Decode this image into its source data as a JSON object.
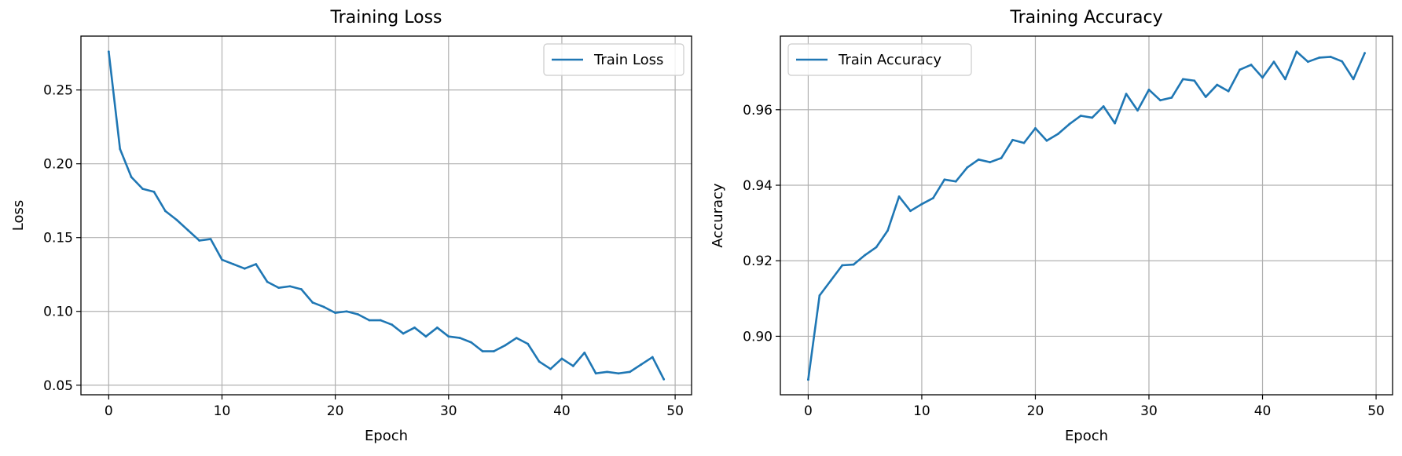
{
  "chart_data": [
    {
      "type": "line",
      "title": "Training Loss",
      "xlabel": "Epoch",
      "ylabel": "Loss",
      "xlim": [
        -2.45,
        51.45
      ],
      "ylim": [
        0.0435,
        0.2865
      ],
      "xticks": [
        0,
        10,
        20,
        30,
        40,
        50
      ],
      "yticks": [
        0.05,
        0.1,
        0.15,
        0.2,
        0.25
      ],
      "xtick_labels": [
        "0",
        "10",
        "20",
        "30",
        "40",
        "50"
      ],
      "ytick_labels": [
        "0.05",
        "0.10",
        "0.15",
        "0.20",
        "0.25"
      ],
      "grid": true,
      "legend_position": "top-right",
      "series": [
        {
          "name": "Train Loss",
          "color": "#1f77b4",
          "x": [
            0,
            1,
            2,
            3,
            4,
            5,
            6,
            7,
            8,
            9,
            10,
            11,
            12,
            13,
            14,
            15,
            16,
            17,
            18,
            19,
            20,
            21,
            22,
            23,
            24,
            25,
            26,
            27,
            28,
            29,
            30,
            31,
            32,
            33,
            34,
            35,
            36,
            37,
            38,
            39,
            40,
            41,
            42,
            43,
            44,
            45,
            46,
            47,
            48,
            49
          ],
          "values": [
            0.276,
            0.21,
            0.191,
            0.183,
            0.181,
            0.168,
            0.162,
            0.155,
            0.148,
            0.149,
            0.135,
            0.132,
            0.129,
            0.132,
            0.12,
            0.116,
            0.117,
            0.115,
            0.106,
            0.103,
            0.099,
            0.1,
            0.098,
            0.094,
            0.094,
            0.091,
            0.085,
            0.089,
            0.083,
            0.089,
            0.083,
            0.082,
            0.079,
            0.073,
            0.073,
            0.077,
            0.082,
            0.078,
            0.066,
            0.061,
            0.068,
            0.063,
            0.072,
            0.058,
            0.059,
            0.058,
            0.059,
            0.064,
            0.069,
            0.054
          ]
        }
      ]
    },
    {
      "type": "line",
      "title": "Training Accuracy",
      "xlabel": "Epoch",
      "ylabel": "Accuracy",
      "xlim": [
        -2.45,
        51.45
      ],
      "ylim": [
        0.8845,
        0.9795
      ],
      "xticks": [
        0,
        10,
        20,
        30,
        40,
        50
      ],
      "yticks": [
        0.9,
        0.92,
        0.94,
        0.96
      ],
      "xtick_labels": [
        "0",
        "10",
        "20",
        "30",
        "40",
        "50"
      ],
      "ytick_labels": [
        "0.90",
        "0.92",
        "0.94",
        "0.96"
      ],
      "grid": true,
      "legend_position": "top-left",
      "series": [
        {
          "name": "Train Accuracy",
          "color": "#1f77b4",
          "x": [
            0,
            1,
            2,
            3,
            4,
            5,
            6,
            7,
            8,
            9,
            10,
            11,
            12,
            13,
            14,
            15,
            16,
            17,
            18,
            19,
            20,
            21,
            22,
            23,
            24,
            25,
            26,
            27,
            28,
            29,
            30,
            31,
            32,
            33,
            34,
            35,
            36,
            37,
            38,
            39,
            40,
            41,
            42,
            43,
            44,
            45,
            46,
            47,
            48,
            49
          ],
          "values": [
            0.8885,
            0.9108,
            0.9148,
            0.9188,
            0.919,
            0.9215,
            0.9236,
            0.928,
            0.937,
            0.9332,
            0.935,
            0.9366,
            0.9415,
            0.941,
            0.9447,
            0.9468,
            0.9461,
            0.9472,
            0.952,
            0.9512,
            0.9551,
            0.9518,
            0.9536,
            0.9562,
            0.9584,
            0.9579,
            0.9609,
            0.9564,
            0.9642,
            0.9598,
            0.9653,
            0.9625,
            0.9632,
            0.9681,
            0.9677,
            0.9634,
            0.9666,
            0.9649,
            0.9706,
            0.9719,
            0.9685,
            0.9727,
            0.9681,
            0.9754,
            0.9727,
            0.9738,
            0.974,
            0.9728,
            0.9681,
            0.975
          ]
        }
      ]
    }
  ]
}
